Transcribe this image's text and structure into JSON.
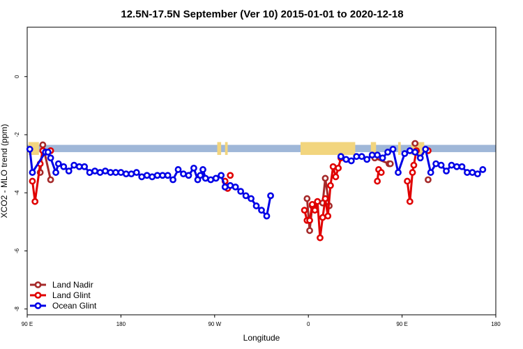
{
  "chart_data": {
    "type": "line",
    "title": "12.5N-17.5N September (Ver 10)   2015-01-01 to 2020-12-18",
    "xlabel": "Longitude",
    "ylabel": "XCO2 - MLO trend (ppm)",
    "xlim": [
      90,
      450
    ],
    "ylim": [
      -8.2,
      1.7
    ],
    "x_ticks": [
      {
        "value": 90,
        "label": "90 E"
      },
      {
        "value": 162,
        "label": "180"
      },
      {
        "value": 234,
        "label": "90 W"
      },
      {
        "value": 306,
        "label": "0"
      },
      {
        "value": 378,
        "label": "90 E"
      },
      {
        "value": 450,
        "label": "180"
      }
    ],
    "y_ticks": [
      {
        "value": 0,
        "label": "0"
      },
      {
        "value": -2,
        "label": "-2"
      },
      {
        "value": -4,
        "label": "-4"
      },
      {
        "value": -6,
        "label": "-6"
      },
      {
        "value": -8,
        "label": "-8"
      }
    ],
    "land_band": {
      "y_top": -2.35,
      "y_bottom": -2.6,
      "ocean_color": "#9fb7d8",
      "land_color": "#f2d57e",
      "land_segments": [
        [
          91,
          99
        ],
        [
          236,
          239
        ],
        [
          242,
          244
        ],
        [
          300,
          342
        ],
        [
          354,
          358
        ],
        [
          375,
          377
        ],
        [
          385,
          395
        ]
      ]
    },
    "legend": {
      "position": "bottom-left"
    },
    "series": [
      {
        "name": "Land Nadir",
        "color": "#a52a2a",
        "segments": [
          [
            [
              100,
              -3.3
            ],
            [
              102,
              -2.35
            ],
            [
              108,
              -3.55
            ]
          ],
          [
            [
              305,
              -4.2
            ],
            [
              307,
              -5.3
            ],
            [
              309,
              -4.45
            ]
          ],
          [
            [
              317,
              -4.35
            ],
            [
              319,
              -3.5
            ],
            [
              322,
              -4.45
            ]
          ],
          [
            [
              357,
              -2.8
            ],
            [
              368,
              -3.0
            ],
            [
              369,
              -3.0
            ]
          ],
          [
            [
              388,
              -2.3
            ]
          ],
          [
            [
              398,
              -3.55
            ]
          ]
        ]
      },
      {
        "name": "Land Glint",
        "color": "#e00000",
        "segments": [
          [
            [
              94,
              -3.6
            ],
            [
              96,
              -4.3
            ],
            [
              100,
              -3.0
            ],
            [
              102,
              -2.55
            ],
            [
              108,
              -2.55
            ]
          ],
          [
            [
              242,
              -3.6
            ],
            [
              244,
              -3.85
            ]
          ],
          [
            [
              246,
              -3.4
            ]
          ],
          [
            [
              303,
              -4.6
            ],
            [
              305,
              -4.95
            ],
            [
              307,
              -4.95
            ],
            [
              309,
              -4.4
            ],
            [
              311,
              -4.6
            ],
            [
              313,
              -4.3
            ],
            [
              315,
              -5.55
            ],
            [
              317,
              -4.85
            ],
            [
              319,
              -4.2
            ],
            [
              321,
              -4.8
            ],
            [
              323,
              -3.75
            ],
            [
              325,
              -3.1
            ],
            [
              327,
              -3.45
            ],
            [
              329,
              -3.15
            ],
            [
              331,
              -2.8
            ]
          ],
          [
            [
              359,
              -3.6
            ],
            [
              360,
              -3.2
            ],
            [
              362,
              -3.3
            ]
          ],
          [
            [
              382,
              -3.6
            ],
            [
              384,
              -4.3
            ],
            [
              386,
              -3.3
            ],
            [
              387,
              -3.05
            ],
            [
              389,
              -2.55
            ]
          ],
          [
            [
              398,
              -2.55
            ]
          ]
        ]
      },
      {
        "name": "Ocean Glint",
        "color": "#0000e6",
        "segments": [
          [
            [
              92,
              -2.5
            ],
            [
              94,
              -3.3
            ],
            [
              104,
              -2.6
            ],
            [
              106,
              -2.6
            ],
            [
              108,
              -2.8
            ],
            [
              112,
              -3.3
            ],
            [
              114,
              -3.0
            ],
            [
              118,
              -3.1
            ],
            [
              122,
              -3.25
            ],
            [
              126,
              -3.05
            ],
            [
              130,
              -3.1
            ],
            [
              134,
              -3.1
            ],
            [
              138,
              -3.3
            ],
            [
              142,
              -3.25
            ],
            [
              146,
              -3.3
            ],
            [
              150,
              -3.25
            ],
            [
              154,
              -3.3
            ],
            [
              158,
              -3.3
            ],
            [
              162,
              -3.3
            ],
            [
              166,
              -3.35
            ],
            [
              170,
              -3.35
            ],
            [
              174,
              -3.3
            ],
            [
              178,
              -3.45
            ],
            [
              182,
              -3.4
            ],
            [
              186,
              -3.45
            ],
            [
              190,
              -3.4
            ],
            [
              194,
              -3.4
            ],
            [
              198,
              -3.4
            ],
            [
              202,
              -3.55
            ],
            [
              206,
              -3.2
            ],
            [
              210,
              -3.35
            ],
            [
              214,
              -3.4
            ],
            [
              218,
              -3.15
            ],
            [
              221,
              -3.55
            ],
            [
              223,
              -3.4
            ],
            [
              225,
              -3.2
            ],
            [
              227,
              -3.5
            ],
            [
              231,
              -3.55
            ],
            [
              235,
              -3.5
            ],
            [
              239,
              -3.4
            ],
            [
              242,
              -3.8
            ],
            [
              246,
              -3.75
            ],
            [
              250,
              -3.8
            ],
            [
              254,
              -3.95
            ],
            [
              258,
              -4.1
            ],
            [
              262,
              -4.2
            ],
            [
              266,
              -4.45
            ],
            [
              270,
              -4.6
            ],
            [
              274,
              -4.8
            ],
            [
              277,
              -4.1
            ]
          ],
          [
            [
              331,
              -2.75
            ],
            [
              335,
              -2.85
            ],
            [
              339,
              -2.9
            ],
            [
              343,
              -2.75
            ],
            [
              347,
              -2.75
            ],
            [
              351,
              -2.85
            ],
            [
              355,
              -2.7
            ],
            [
              359,
              -2.7
            ],
            [
              363,
              -2.8
            ],
            [
              367,
              -2.6
            ],
            [
              371,
              -2.5
            ],
            [
              375,
              -3.3
            ],
            [
              380,
              -2.65
            ],
            [
              384,
              -2.55
            ],
            [
              388,
              -2.6
            ],
            [
              392,
              -2.8
            ],
            [
              396,
              -2.5
            ],
            [
              400,
              -3.3
            ],
            [
              404,
              -3.0
            ],
            [
              408,
              -3.05
            ],
            [
              412,
              -3.25
            ],
            [
              416,
              -3.05
            ],
            [
              420,
              -3.1
            ],
            [
              424,
              -3.1
            ],
            [
              428,
              -3.3
            ],
            [
              432,
              -3.3
            ],
            [
              436,
              -3.35
            ],
            [
              440,
              -3.2
            ]
          ]
        ]
      }
    ]
  }
}
